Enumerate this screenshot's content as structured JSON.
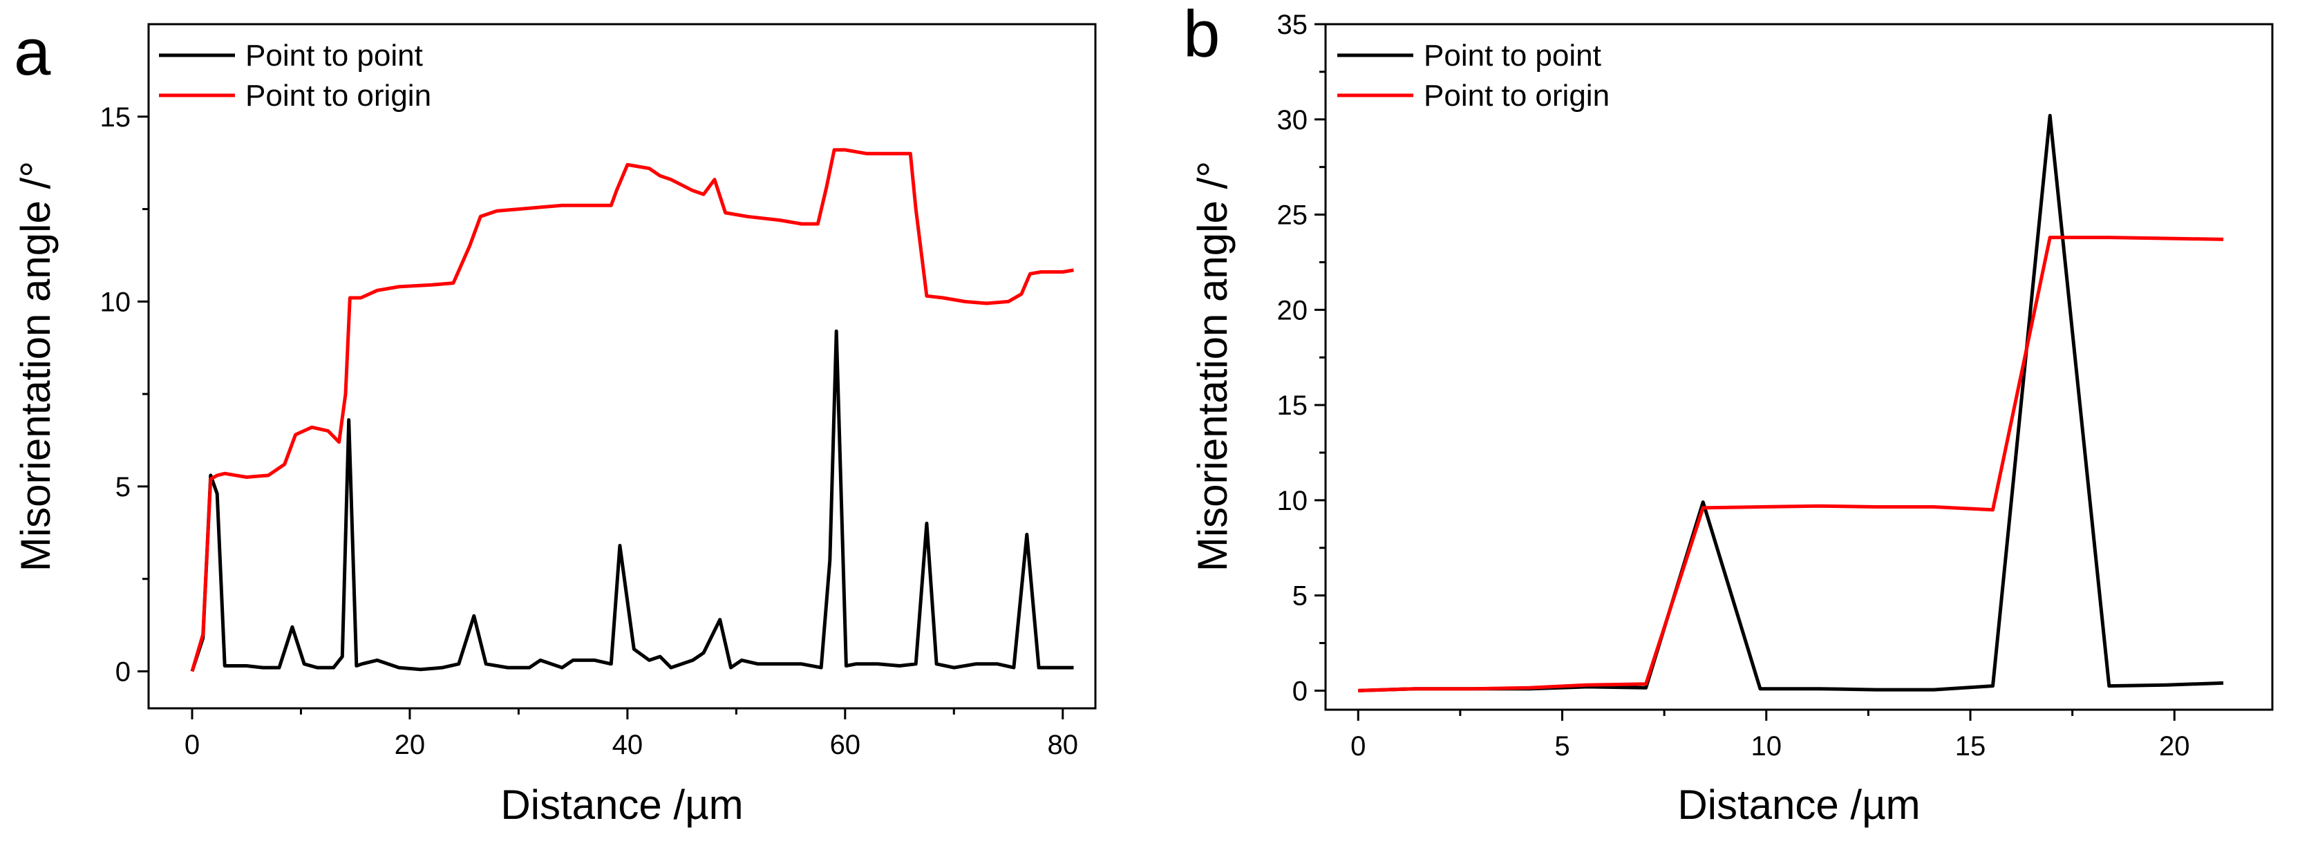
{
  "chart_data": [
    {
      "panel": "a",
      "type": "line",
      "xlabel": "Distance /µm",
      "ylabel": "Misorientation angle /°",
      "xlim": [
        -4,
        83
      ],
      "ylim": [
        -1,
        17.5
      ],
      "xticks": [
        0,
        20,
        40,
        60,
        80
      ],
      "yticks": [
        0,
        5,
        10,
        15
      ],
      "legend_position": "top-left",
      "series": [
        {
          "name": "Point to point",
          "color": "#000000",
          "x": [
            0,
            1,
            1.7,
            2.3,
            3,
            5,
            6.5,
            8,
            9.2,
            10.3,
            11.5,
            13,
            13.8,
            14.4,
            15.1,
            15.6,
            17,
            19,
            21,
            23,
            24.5,
            25.9,
            27,
            29,
            31,
            32,
            33,
            34,
            35,
            37,
            38.5,
            39.3,
            40.6,
            42,
            43,
            44,
            45,
            46,
            47,
            48.5,
            49.5,
            50.5,
            52,
            54,
            56,
            57.8,
            58.6,
            59.2,
            60.1,
            61,
            62,
            63,
            65,
            66.5,
            67.5,
            68.4,
            70,
            72,
            74,
            75.5,
            76.7,
            77.8,
            79,
            81
          ],
          "values": [
            0,
            0.9,
            5.3,
            4.8,
            0.15,
            0.15,
            0.1,
            0.1,
            1.2,
            0.2,
            0.1,
            0.1,
            0.4,
            6.8,
            0.15,
            0.2,
            0.3,
            0.1,
            0.05,
            0.1,
            0.2,
            1.5,
            0.2,
            0.1,
            0.1,
            0.3,
            0.2,
            0.1,
            0.3,
            0.3,
            0.2,
            3.4,
            0.6,
            0.3,
            0.4,
            0.1,
            0.2,
            0.3,
            0.5,
            1.4,
            0.1,
            0.3,
            0.2,
            0.2,
            0.2,
            0.1,
            3.0,
            9.2,
            0.15,
            0.2,
            0.2,
            0.2,
            0.15,
            0.2,
            4.0,
            0.2,
            0.1,
            0.2,
            0.2,
            0.1,
            3.7,
            0.1,
            0.1,
            0.1
          ]
        },
        {
          "name": "Point to origin",
          "color": "#ff0000",
          "x": [
            0,
            1,
            1.7,
            2.3,
            3,
            5,
            7,
            8.5,
            9.5,
            11,
            12.5,
            13.5,
            14.1,
            14.5,
            15.5,
            17,
            19,
            22,
            24,
            25.5,
            26.5,
            28,
            30,
            32,
            34,
            36,
            38.5,
            39,
            40,
            41,
            42,
            43,
            44,
            46,
            47,
            48,
            49,
            51,
            54,
            56,
            57.5,
            58.3,
            59,
            60,
            62,
            64,
            66,
            66.5,
            67.5,
            69,
            71,
            73,
            75,
            76.2,
            77,
            78,
            80,
            81
          ],
          "values": [
            0,
            1,
            5.2,
            5.3,
            5.35,
            5.25,
            5.3,
            5.6,
            6.4,
            6.6,
            6.5,
            6.2,
            7.5,
            10.1,
            10.1,
            10.3,
            10.4,
            10.45,
            10.5,
            11.5,
            12.3,
            12.45,
            12.5,
            12.55,
            12.6,
            12.6,
            12.6,
            13.0,
            13.7,
            13.65,
            13.6,
            13.4,
            13.3,
            13.0,
            12.9,
            13.3,
            12.4,
            12.3,
            12.2,
            12.1,
            12.1,
            13.1,
            14.1,
            14.1,
            14.0,
            14.0,
            14.0,
            12.5,
            10.15,
            10.1,
            10.0,
            9.95,
            10.0,
            10.2,
            10.75,
            10.8,
            10.8,
            10.85
          ]
        }
      ]
    },
    {
      "panel": "b",
      "type": "line",
      "xlabel": "Distance /µm",
      "ylabel": "Misorientation angle /°",
      "xlim": [
        -0.8,
        22.4
      ],
      "ylim": [
        -1,
        35
      ],
      "xticks": [
        0,
        5,
        10,
        15,
        20
      ],
      "yticks": [
        0,
        5,
        10,
        15,
        20,
        25,
        30,
        35
      ],
      "legend_position": "top-left",
      "series": [
        {
          "name": "Point to point",
          "color": "#000000",
          "x": [
            0,
            1.4,
            2.8,
            4.2,
            5.6,
            7.05,
            8.45,
            9.85,
            11.3,
            12.7,
            14.1,
            15.55,
            16.95,
            18.4,
            19.8,
            21.2
          ],
          "values": [
            0,
            0.1,
            0.1,
            0.1,
            0.2,
            0.15,
            9.9,
            0.1,
            0.1,
            0.05,
            0.05,
            0.25,
            30.2,
            0.25,
            0.3,
            0.4
          ]
        },
        {
          "name": "Point to origin",
          "color": "#ff0000",
          "x": [
            0,
            1.4,
            2.8,
            4.2,
            5.6,
            7.05,
            8.45,
            9.85,
            11.3,
            12.7,
            14.1,
            15.55,
            16.95,
            18.4,
            19.8,
            21.2
          ],
          "values": [
            0,
            0.1,
            0.1,
            0.15,
            0.3,
            0.35,
            9.6,
            9.65,
            9.7,
            9.65,
            9.65,
            9.5,
            23.8,
            23.8,
            23.75,
            23.7
          ]
        }
      ]
    }
  ]
}
